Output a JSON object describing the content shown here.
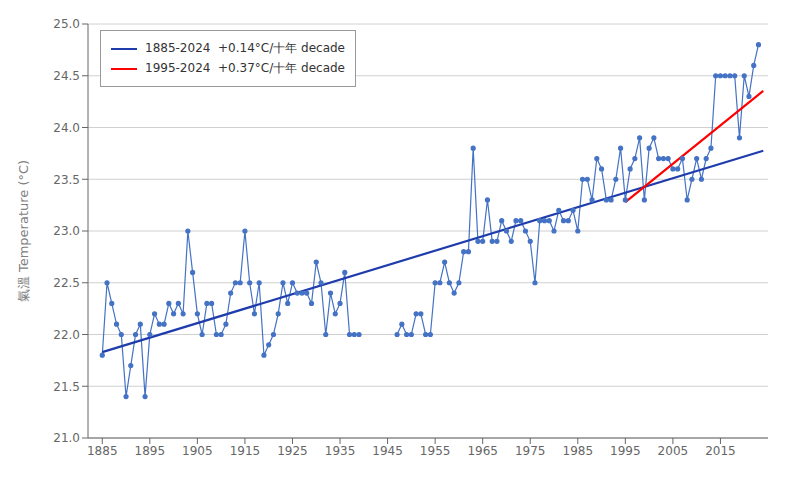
{
  "chart_data": {
    "type": "line",
    "ylabel": "氣溫 Temperature (°C)",
    "xlim": [
      1882,
      2025
    ],
    "ylim": [
      21.0,
      25.0
    ],
    "xticks": [
      1885,
      1895,
      1905,
      1915,
      1925,
      1935,
      1945,
      1955,
      1965,
      1975,
      1985,
      1995,
      2005,
      2015
    ],
    "yticks": [
      {
        "value": 21,
        "label": "21.0"
      },
      21.5,
      {
        "value": 22,
        "label": "22.0"
      },
      22.5,
      {
        "value": 23,
        "label": "23.0"
      },
      23.5,
      {
        "value": 24,
        "label": "24.0"
      },
      24.5,
      {
        "value": 25,
        "label": "25.0"
      }
    ],
    "grid": true,
    "legend": "upper left",
    "series": [
      {
        "x": [
          1885,
          1886,
          1887,
          1888,
          1889,
          1890,
          1891,
          1892,
          1893,
          1894,
          1895,
          1896,
          1897,
          1898,
          1899,
          1900,
          1901,
          1902,
          1903,
          1904,
          1905,
          1906,
          1907,
          1908,
          1909,
          1910,
          1911,
          1912,
          1913,
          1914,
          1915,
          1916,
          1917,
          1918,
          1919,
          1920,
          1921,
          1922,
          1923,
          1924,
          1925,
          1926,
          1927,
          1928,
          1929,
          1930,
          1931,
          1932,
          1933,
          1934,
          1935,
          1936,
          1937,
          1938,
          1939,
          1947,
          1948,
          1949,
          1950,
          1951,
          1952,
          1953,
          1954,
          1955,
          1956,
          1957,
          1958,
          1959,
          1960,
          1961,
          1962,
          1963,
          1964,
          1965,
          1966,
          1967,
          1968,
          1969,
          1970,
          1971,
          1972,
          1973,
          1974,
          1975,
          1976,
          1977,
          1978,
          1979,
          1980,
          1981,
          1982,
          1983,
          1984,
          1985,
          1986,
          1987,
          1988,
          1989,
          1990,
          1991,
          1992,
          1993,
          1994,
          1995,
          1996,
          1997,
          1998,
          1999,
          2000,
          2001,
          2002,
          2003,
          2004,
          2005,
          2006,
          2007,
          2008,
          2009,
          2010,
          2011,
          2012,
          2013,
          2014,
          2015,
          2016,
          2017,
          2018,
          2019,
          2020,
          2021,
          2022,
          2023
        ],
        "values": [
          21.8,
          22.5,
          22.3,
          22.1,
          22.0,
          21.4,
          21.7,
          22.0,
          22.1,
          21.4,
          22.0,
          22.2,
          22.1,
          22.1,
          22.3,
          22.2,
          22.3,
          22.2,
          23.0,
          22.6,
          22.2,
          22.0,
          22.3,
          22.3,
          22.0,
          22.0,
          22.1,
          22.4,
          22.5,
          22.5,
          23.0,
          22.5,
          22.2,
          22.5,
          21.8,
          21.9,
          22.0,
          22.2,
          22.5,
          22.3,
          22.5,
          22.4,
          22.4,
          22.4,
          22.3,
          22.7,
          22.5,
          22.0,
          22.4,
          22.2,
          22.3,
          22.6,
          22.0,
          22.0,
          22.0,
          22.0,
          22.1,
          22.0,
          22.0,
          22.2,
          22.2,
          22.0,
          22.0,
          22.5,
          22.5,
          22.7,
          22.5,
          22.4,
          22.5,
          22.8,
          22.8,
          23.8,
          22.9,
          22.9,
          23.3,
          22.9,
          22.9,
          23.1,
          23.0,
          22.9,
          23.1,
          23.1,
          23.0,
          22.9,
          22.5,
          23.1,
          23.1,
          23.1,
          23.0,
          23.2,
          23.1,
          23.1,
          23.2,
          23.0,
          23.5,
          23.5,
          23.3,
          23.7,
          23.6,
          23.3,
          23.3,
          23.5,
          23.8,
          23.3,
          23.6,
          23.7,
          23.9,
          23.3,
          23.8,
          23.9,
          23.7,
          23.7,
          23.7,
          23.6,
          23.6,
          23.7,
          23.3,
          23.5,
          23.7,
          23.5,
          23.7,
          23.8,
          24.5,
          24.5,
          24.5,
          24.5,
          24.5,
          23.9,
          24.5,
          24.3,
          24.6,
          24.8
        ],
        "color": "#4472c4",
        "marker": "circle"
      },
      {
        "name": "1885-2024  +0.14°C/十年 decade",
        "x": [
          1885,
          2024
        ],
        "values": [
          21.83,
          23.776
        ],
        "color": "#1f3cad",
        "marker": "none"
      },
      {
        "name": "1995-2024  +0.37°C/十年 decade",
        "x": [
          1995,
          2024
        ],
        "values": [
          23.28,
          24.353
        ],
        "color": "#ff0000",
        "marker": "none"
      }
    ]
  }
}
